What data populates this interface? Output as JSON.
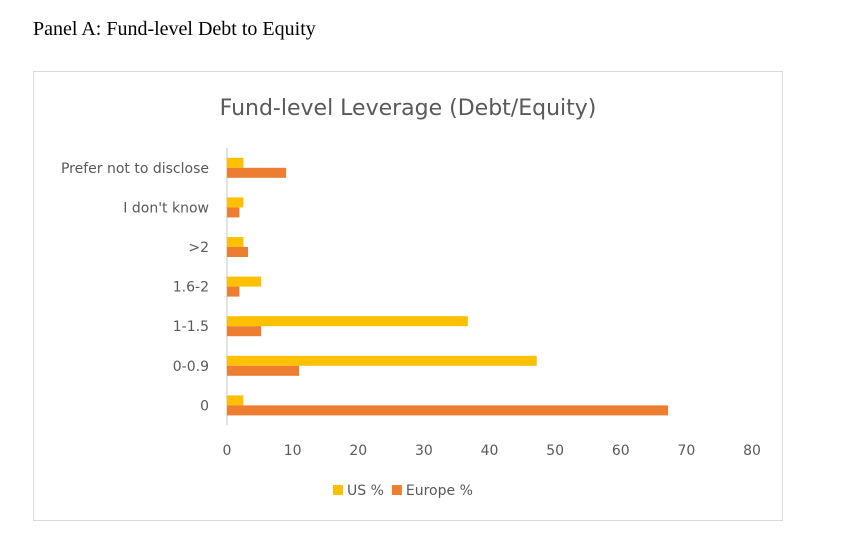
{
  "panel_title": "Panel A: Fund-level Debt to Equity",
  "chart_data": {
    "type": "bar",
    "orientation": "horizontal",
    "title": "Fund-level Leverage (Debt/Equity)",
    "categories": [
      "Prefer not to disclose",
      "I don't know",
      ">2",
      "1.6-2",
      "1-1.5",
      "0-0.9",
      "0"
    ],
    "series": [
      {
        "name": "US %",
        "color": "#FFC000",
        "values": [
          2.5,
          2.5,
          2.5,
          5.2,
          36.7,
          47.2,
          2.5
        ]
      },
      {
        "name": "Europe %",
        "color": "#ED7D31",
        "values": [
          9.0,
          1.9,
          3.2,
          1.9,
          5.2,
          11.0,
          67.2
        ]
      }
    ],
    "xlim": [
      0,
      80
    ],
    "xticks": [
      "0",
      "10",
      "20",
      "30",
      "40",
      "50",
      "60",
      "70",
      "80"
    ],
    "grid": false,
    "legend": "bottom"
  }
}
